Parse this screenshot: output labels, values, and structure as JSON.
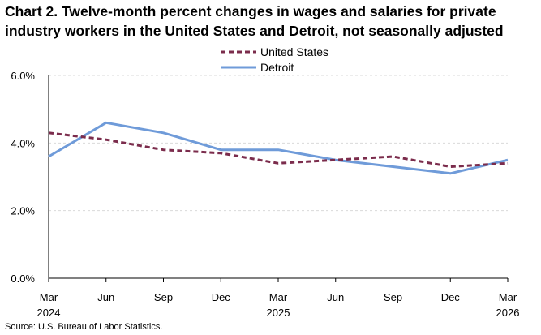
{
  "chart_data": {
    "type": "line",
    "title": "Chart 2. Twelve-month percent changes in wages and salaries for private industry workers in the United States and Detroit, not seasonally adjusted",
    "categories": [
      "Mar 2024",
      "Jun",
      "Sep",
      "Dec",
      "Mar 2025",
      "Jun",
      "Sep",
      "Dec",
      "Mar 2026"
    ],
    "x_tick_labels": [
      {
        "line1": "Mar",
        "line2": "2024"
      },
      {
        "line1": "Jun",
        "line2": ""
      },
      {
        "line1": "Sep",
        "line2": ""
      },
      {
        "line1": "Dec",
        "line2": ""
      },
      {
        "line1": "Mar",
        "line2": "2025"
      },
      {
        "line1": "Jun",
        "line2": ""
      },
      {
        "line1": "Sep",
        "line2": ""
      },
      {
        "line1": "Dec",
        "line2": ""
      },
      {
        "line1": "Mar",
        "line2": "2026"
      }
    ],
    "y_ticks": [
      0,
      2,
      4,
      6
    ],
    "y_tick_labels": [
      "0.0%",
      "2.0%",
      "4.0%",
      "6.0%"
    ],
    "ylim": [
      0,
      6
    ],
    "grid": true,
    "legend_position": "top-center",
    "series": [
      {
        "name": "United States",
        "color": "#7b2c4c",
        "style": "dashed",
        "values": [
          4.3,
          4.1,
          3.8,
          3.7,
          3.4,
          3.5,
          3.6,
          3.3,
          3.4
        ]
      },
      {
        "name": "Detroit",
        "color": "#6f9bd9",
        "style": "solid",
        "values": [
          3.6,
          4.6,
          4.3,
          3.8,
          3.8,
          3.5,
          3.3,
          3.1,
          3.5
        ]
      }
    ],
    "source": "Source: U.S. Bureau of Labor Statistics."
  }
}
